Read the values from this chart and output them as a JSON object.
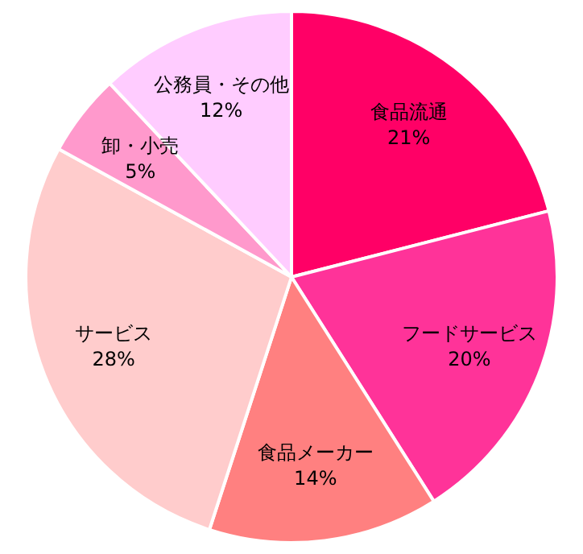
{
  "chart_data": {
    "type": "pie",
    "categories": [
      "食品流通",
      "フードサービス",
      "食品メーカー",
      "サービス",
      "卸・小売",
      "公務員・その他"
    ],
    "values": [
      21,
      20,
      14,
      28,
      5,
      12
    ],
    "value_labels": [
      "21%",
      "20%",
      "14%",
      "28%",
      "5%",
      "12%"
    ],
    "colors": [
      "#ff0066",
      "#ff3399",
      "#ff8080",
      "#ffcccc",
      "#ff99cc",
      "#ffccff"
    ],
    "legend": false
  }
}
